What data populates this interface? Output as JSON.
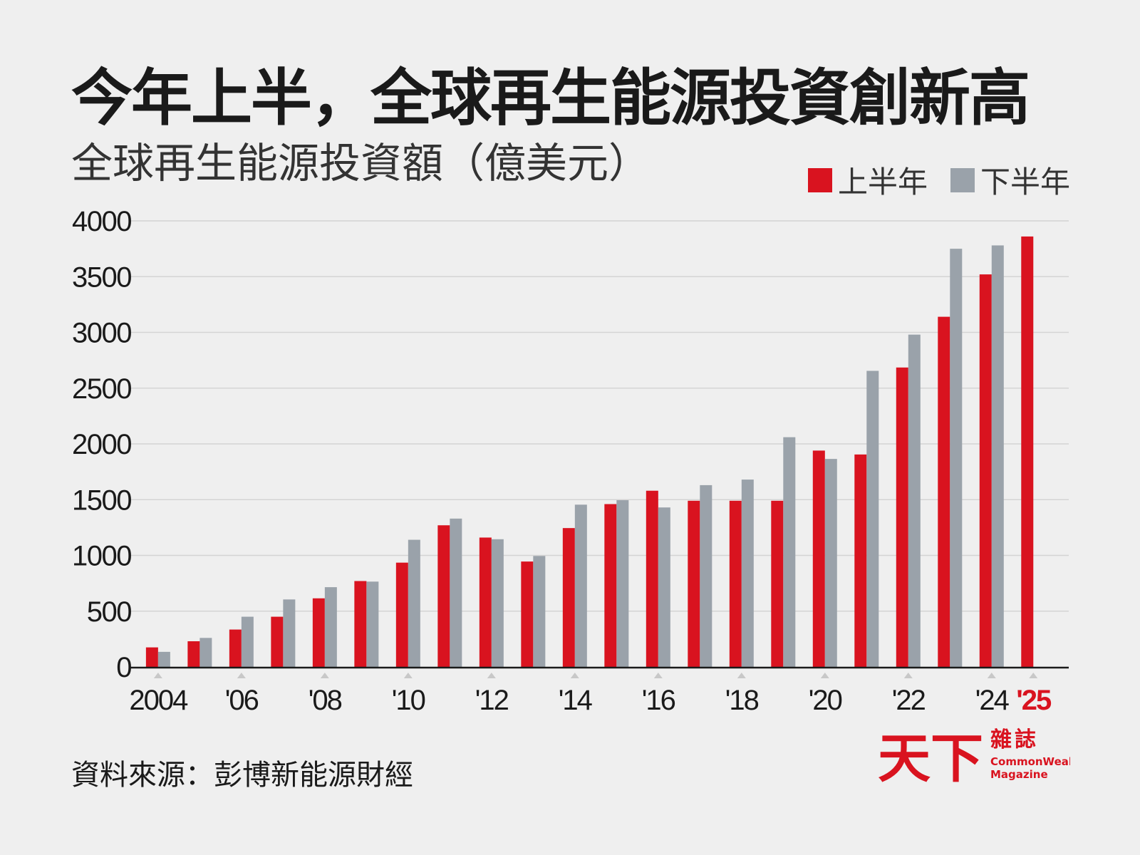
{
  "header": {
    "title": "今年上半，全球再生能源投資創新高",
    "subtitle": "全球再生能源投資額（億美元）"
  },
  "colors": {
    "first_half": "#d9131f",
    "second_half": "#9aa2aa",
    "highlight_tick": "#d9131f"
  },
  "source": "資料來源：彭博新能源財經",
  "logo": {
    "chinese_name": "天下",
    "chinese_suffix": "雜誌",
    "english_line1": "CommonWealth",
    "english_line2": "Magazine"
  },
  "chart_data": {
    "type": "bar",
    "ylim": [
      0,
      4000
    ],
    "yticks": [
      0,
      500,
      1000,
      1500,
      2000,
      2500,
      3000,
      3500,
      4000
    ],
    "grid": true,
    "legend_position": "top-right",
    "categories": [
      "2004",
      "2005",
      "2006",
      "2007",
      "2008",
      "2009",
      "2010",
      "2011",
      "2012",
      "2013",
      "2014",
      "2015",
      "2016",
      "2017",
      "2018",
      "2019",
      "2020",
      "2021",
      "2022",
      "2023",
      "2024",
      "2025"
    ],
    "xtick_labels": [
      {
        "index": 0,
        "label": "2004"
      },
      {
        "index": 2,
        "label": "'06"
      },
      {
        "index": 4,
        "label": "'08"
      },
      {
        "index": 6,
        "label": "'10"
      },
      {
        "index": 8,
        "label": "'12"
      },
      {
        "index": 10,
        "label": "'14"
      },
      {
        "index": 12,
        "label": "'16"
      },
      {
        "index": 14,
        "label": "'18"
      },
      {
        "index": 16,
        "label": "'20"
      },
      {
        "index": 18,
        "label": "'22"
      },
      {
        "index": 20,
        "label": "'24"
      },
      {
        "index": 21,
        "label": "'25",
        "highlight": true
      }
    ],
    "series": [
      {
        "name": "上半年",
        "values": [
          175,
          230,
          335,
          450,
          615,
          770,
          935,
          1270,
          1160,
          945,
          1245,
          1460,
          1580,
          1490,
          1490,
          1490,
          1940,
          1905,
          2685,
          3140,
          3520,
          3860
        ]
      },
      {
        "name": "下半年",
        "values": [
          135,
          260,
          450,
          605,
          715,
          765,
          1140,
          1330,
          1145,
          995,
          1455,
          1495,
          1430,
          1630,
          1680,
          2060,
          1865,
          2655,
          2980,
          3750,
          3780,
          null
        ]
      }
    ]
  }
}
